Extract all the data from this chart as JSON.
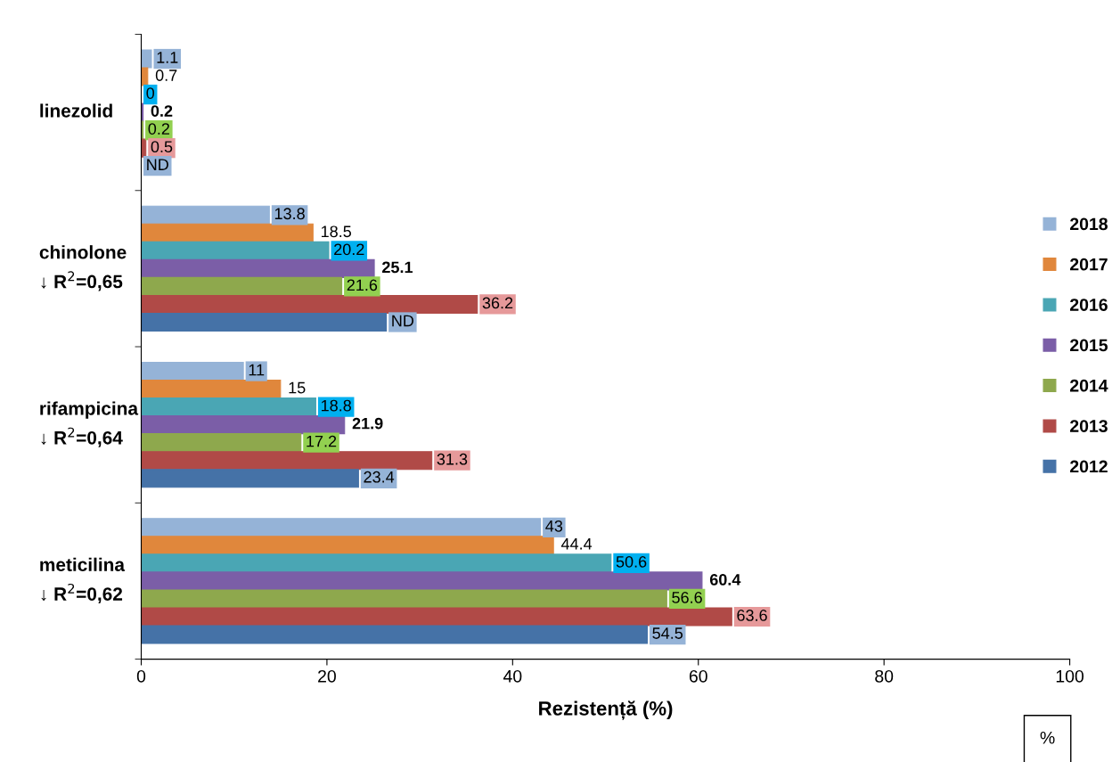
{
  "chart_data": {
    "type": "bar",
    "orientation": "horizontal",
    "xlabel": "Rezistență (%)",
    "categories": [
      "linezolid",
      "chinolone\n↓ R$^{2}$=0,65",
      "rifampicina\n↓ R$^{2}$=0,64",
      "meticilina\n↓ R$^{2}$=0,62"
    ],
    "series": [
      {
        "name": "2018",
        "color": "#95b3d7",
        "values": [
          1.1,
          13.8,
          11,
          43
        ]
      },
      {
        "name": "2017",
        "color": "#e0873c",
        "values": [
          0.7,
          18.5,
          15,
          44.4
        ]
      },
      {
        "name": "2016",
        "color": "#4aa6b4",
        "values": [
          0,
          20.2,
          18.8,
          50.6
        ]
      },
      {
        "name": "2015",
        "color": "#7b5ea7",
        "values": [
          0.2,
          25.1,
          21.9,
          60.4
        ]
      },
      {
        "name": "2014",
        "color": "#8ea84d",
        "values": [
          0.2,
          21.6,
          17.2,
          56.6
        ]
      },
      {
        "name": "2013",
        "color": "#b04a47",
        "values": [
          0.5,
          36.2,
          31.3,
          63.6
        ]
      },
      {
        "name": "2012",
        "color": "#4572a7",
        "values": [
          null,
          26.4,
          23.4,
          54.5
        ],
        "value_labels": [
          "ND",
          "ND",
          "23.4",
          "54.5"
        ]
      }
    ],
    "data_labels": true,
    "xlim": [
      0,
      100
    ],
    "xticks": [
      0,
      20,
      40,
      60,
      80,
      100
    ],
    "grid": false,
    "legend": "right",
    "annotations": [
      "%"
    ]
  }
}
